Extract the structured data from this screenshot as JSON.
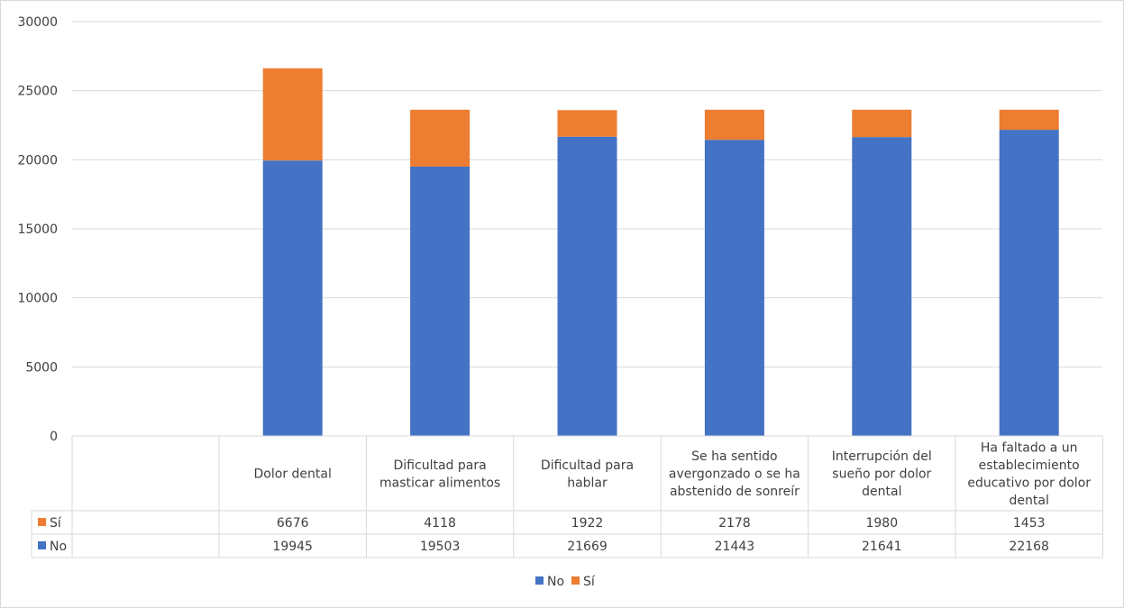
{
  "chart_data": {
    "type": "bar",
    "stacked": true,
    "title": "",
    "xlabel": "",
    "ylabel": "",
    "ylim": [
      0,
      30000
    ],
    "yticks": [
      0,
      5000,
      10000,
      15000,
      20000,
      25000,
      30000
    ],
    "grid": true,
    "legend_position": "bottom",
    "data_table": true,
    "categories": [
      [
        "Dolor dental"
      ],
      [
        "Dificultad para",
        "masticar alimentos"
      ],
      [
        "Dificultad para",
        "hablar"
      ],
      [
        "Se ha sentido",
        "avergonzado o se ha",
        "abstenido de sonreír"
      ],
      [
        "Interrupción del",
        "sueño por dolor",
        "dental"
      ],
      [
        "Ha faltado a un",
        "establecimiento",
        "educativo por dolor",
        "dental"
      ]
    ],
    "series": [
      {
        "name": "No",
        "color": "#4472C4",
        "values": [
          19945,
          19503,
          21669,
          21443,
          21641,
          22168
        ]
      },
      {
        "name": "Sí",
        "color": "#ED7D31",
        "values": [
          6676,
          4118,
          1922,
          2178,
          1980,
          1453
        ]
      }
    ]
  }
}
